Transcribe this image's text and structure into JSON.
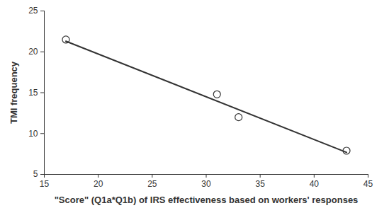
{
  "chart_data": {
    "type": "scatter",
    "x_label": "\"Score\" (Q1a*Q1b) of IRS effectiveness based on workers' responses",
    "y_label": "TMI frequency",
    "xlim": [
      15,
      45
    ],
    "xticks": [
      15,
      20,
      25,
      30,
      35,
      40,
      45
    ],
    "ylim": [
      5,
      25
    ],
    "yticks": [
      5,
      10,
      15,
      20,
      25
    ],
    "grid": false,
    "series": [
      {
        "type": "scatter",
        "marker": "circle",
        "color": "#333333",
        "x": [
          17,
          31,
          33,
          43
        ],
        "values": [
          21.5,
          14.8,
          12.0,
          7.9
        ]
      },
      {
        "type": "line",
        "line_style": "solid",
        "color": "#333333",
        "x": [
          17,
          43
        ],
        "values": [
          21.3,
          7.7
        ]
      }
    ]
  }
}
